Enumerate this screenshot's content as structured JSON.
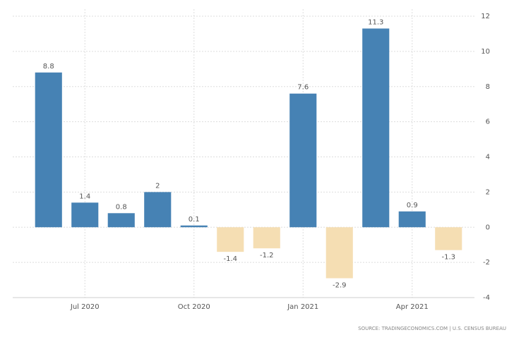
{
  "chart_data": {
    "type": "bar",
    "categories": [
      null,
      "Jul 2020",
      null,
      null,
      "Oct 2020",
      null,
      null,
      "Jan 2021",
      null,
      null,
      "Apr 2021",
      null
    ],
    "values": [
      8.8,
      1.4,
      0.8,
      2,
      0.1,
      -1.4,
      -1.2,
      7.6,
      -2.9,
      11.3,
      0.9,
      -1.3
    ],
    "color": "#4682b4",
    "negative_color": "#f5deb3",
    "ylim": [
      -4,
      12
    ],
    "yticks": [
      -4,
      -2,
      0,
      2,
      4,
      6,
      8,
      10,
      12
    ],
    "grid": true,
    "source": "SOURCE: TRADINGECONOMICS.COM | U.S. CENSUS BUREAU"
  }
}
